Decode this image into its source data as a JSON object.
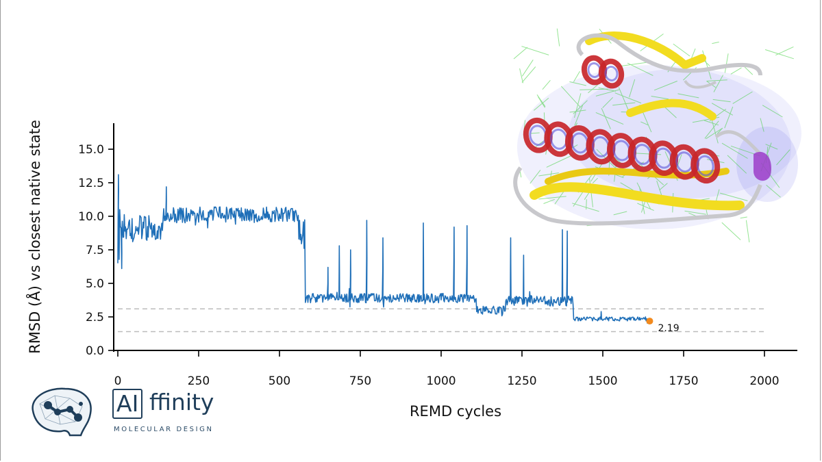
{
  "chart_data": {
    "type": "line",
    "xlabel": "REMD cycles",
    "ylabel": "RMSD (Å) vs closest native state",
    "xlim": [
      0,
      2000
    ],
    "ylim": [
      0,
      16.8
    ],
    "x_ticks": [
      "0",
      "250",
      "500",
      "750",
      "1000",
      "1250",
      "1500",
      "1750",
      "2000"
    ],
    "y_ticks": [
      "0.0",
      "2.5",
      "5.0",
      "7.5",
      "10.0",
      "12.5",
      "15.0"
    ],
    "reference_lines": [
      3.1,
      1.4
    ],
    "last_point": {
      "x": 1645,
      "y": 2.19,
      "label": "2.19"
    },
    "colors": {
      "line": "#1f6fb8",
      "last_point": "#f28a1e",
      "reference": "#bbbbbb"
    },
    "grid": false,
    "segments": [
      {
        "x0": 0,
        "x1": 10,
        "base": 9.0,
        "amp": 2.5
      },
      {
        "x0": 10,
        "x1": 140,
        "base": 9.1,
        "amp": 0.9
      },
      {
        "x0": 140,
        "x1": 560,
        "base": 10.1,
        "amp": 0.6
      },
      {
        "x0": 560,
        "x1": 580,
        "base": 8.6,
        "amp": 1.2
      },
      {
        "x0": 580,
        "x1": 1110,
        "base": 3.9,
        "amp": 0.35
      },
      {
        "x0": 1110,
        "x1": 1200,
        "base": 3.0,
        "amp": 0.3
      },
      {
        "x0": 1200,
        "x1": 1410,
        "base": 3.7,
        "amp": 0.4
      },
      {
        "x0": 1410,
        "x1": 1645,
        "base": 2.35,
        "amp": 0.15
      }
    ],
    "spikes": [
      {
        "x": 2,
        "y": 13.1
      },
      {
        "x": 12,
        "y": 6.1
      },
      {
        "x": 150,
        "y": 12.2
      },
      {
        "x": 650,
        "y": 6.2
      },
      {
        "x": 685,
        "y": 7.8
      },
      {
        "x": 720,
        "y": 7.5
      },
      {
        "x": 770,
        "y": 9.7
      },
      {
        "x": 820,
        "y": 8.4
      },
      {
        "x": 945,
        "y": 9.5
      },
      {
        "x": 1040,
        "y": 9.2
      },
      {
        "x": 1080,
        "y": 9.3
      },
      {
        "x": 1215,
        "y": 8.4
      },
      {
        "x": 1255,
        "y": 7.1
      },
      {
        "x": 1375,
        "y": 9.0
      },
      {
        "x": 1390,
        "y": 8.9
      },
      {
        "x": 1495,
        "y": 2.9
      }
    ]
  },
  "branding": {
    "logo_main_ai": "AI",
    "logo_main_rest": "ffinity",
    "logo_tagline": "MOLECULAR DESIGN"
  },
  "illustration": {
    "subject": "protein-structure-render",
    "colors": {
      "helix": "#c8262a",
      "sheet": "#f2dc20",
      "loop": "#c8c8cc",
      "contacts": "#3ecf3a",
      "surface": "#6b6be8"
    }
  }
}
